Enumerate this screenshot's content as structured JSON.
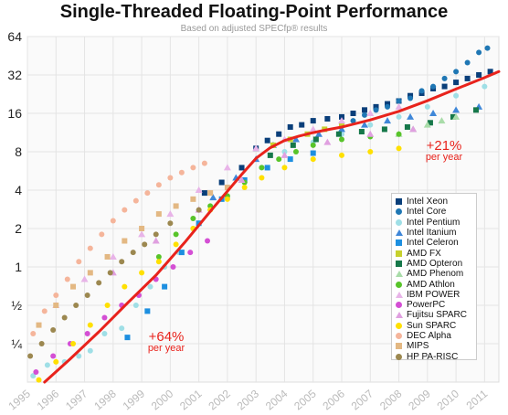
{
  "chart_data": {
    "type": "scatter",
    "title": "Single-Threaded Floating-Point Performance",
    "subtitle": "Based on adjusted SPECfp® results",
    "xlabel": "",
    "ylabel": "",
    "y_scale": "log2",
    "ylim": [
      0.125,
      64
    ],
    "xlim": [
      1995,
      2011.5
    ],
    "y_ticks": [
      {
        "value": 0.25,
        "label": "¼"
      },
      {
        "value": 0.5,
        "label": "½"
      },
      {
        "value": 1,
        "label": "1"
      },
      {
        "value": 2,
        "label": "2"
      },
      {
        "value": 4,
        "label": "4"
      },
      {
        "value": 8,
        "label": "8"
      },
      {
        "value": 16,
        "label": "16"
      },
      {
        "value": 32,
        "label": "32"
      },
      {
        "value": 64,
        "label": "64"
      }
    ],
    "x_ticks": [
      "1995",
      "1996",
      "1997",
      "1998",
      "1999",
      "2000",
      "2001",
      "2002",
      "2003",
      "2004",
      "2005",
      "2006",
      "2007",
      "2008",
      "2009",
      "2010",
      "2011"
    ],
    "grid": true,
    "legend_placement": "bottom-right",
    "series": [
      {
        "name": "Intel Xeon",
        "color": "#0a3f7a",
        "marker": "square",
        "x": [
          2001.2,
          2001.8,
          2002.5,
          2003.0,
          2003.4,
          2003.8,
          2004.2,
          2004.6,
          2005.0,
          2005.5,
          2006.0,
          2006.4,
          2006.8,
          2007.2,
          2007.6,
          2008.0,
          2008.4,
          2008.8,
          2009.2,
          2009.6,
          2010.0,
          2010.4,
          2010.8,
          2011.2
        ],
        "y": [
          3.8,
          4.6,
          6.0,
          8.5,
          9.8,
          11,
          12.5,
          13,
          14,
          14.5,
          15,
          16,
          17,
          18,
          19,
          20,
          22,
          23,
          25,
          26,
          28,
          30,
          32,
          34
        ]
      },
      {
        "name": "Intel Core",
        "color": "#1f77b4",
        "marker": "circle",
        "x": [
          2006.4,
          2006.8,
          2007.2,
          2007.6,
          2008.0,
          2008.4,
          2008.8,
          2009.2,
          2009.6,
          2010.0,
          2010.4,
          2010.8,
          2011.1
        ],
        "y": [
          14,
          15.5,
          17,
          18,
          20,
          21,
          24,
          26,
          30,
          34,
          40,
          48,
          52
        ]
      },
      {
        "name": "Intel Pentium",
        "color": "#9fdfe6",
        "marker": "circle",
        "x": [
          1995.2,
          1995.7,
          1996.3,
          1996.8,
          1997.2,
          1997.7,
          1998.3,
          1998.8,
          1999.3,
          1999.8,
          2000.3,
          2000.8,
          2001.4,
          2002.0,
          2002.6,
          2003.2,
          2004.0,
          2005.0,
          2006.0,
          2007.0,
          2008.0,
          2009.0,
          2010.0,
          2011.0
        ],
        "y": [
          0.14,
          0.17,
          0.18,
          0.2,
          0.22,
          0.3,
          0.33,
          0.5,
          0.7,
          1.0,
          1.3,
          2.0,
          2.8,
          3.5,
          4.6,
          6.0,
          8.0,
          9.5,
          11,
          13,
          15,
          18,
          22,
          26
        ]
      },
      {
        "name": "Intel Itanium",
        "color": "#3f87d8",
        "marker": "triangle",
        "x": [
          2001.5,
          2002.3,
          2003.0,
          2003.6,
          2004.4,
          2005.2,
          2006.0,
          2006.8,
          2007.6,
          2008.4,
          2009.2,
          2010.0,
          2010.8
        ],
        "y": [
          3.5,
          5.0,
          7.0,
          9.0,
          10,
          11,
          12,
          13,
          14,
          15,
          16,
          17,
          18
        ]
      },
      {
        "name": "Intel Celeron",
        "color": "#1d8fe0",
        "marker": "square",
        "x": [
          1998.5,
          1999.2,
          1999.8,
          2000.4,
          2001.0,
          2001.8,
          2002.6,
          2003.4,
          2004.2,
          2005.0
        ],
        "y": [
          0.28,
          0.45,
          0.7,
          1.3,
          2.2,
          3.4,
          4.8,
          6.0,
          7.0,
          7.8
        ]
      },
      {
        "name": "AMD FX",
        "color": "#c7d12e",
        "marker": "square",
        "x": [
          2003.6,
          2004.2,
          2004.8,
          2005.4,
          2006.0
        ],
        "y": [
          9,
          10,
          11,
          12,
          13
        ]
      },
      {
        "name": "AMD Opteron",
        "color": "#16784a",
        "marker": "square",
        "x": [
          2003.5,
          2004.3,
          2005.1,
          2005.9,
          2006.7,
          2007.5,
          2008.3,
          2009.1,
          2009.9,
          2010.7
        ],
        "y": [
          7.5,
          9,
          10,
          11,
          11.5,
          12,
          12.5,
          13.5,
          15,
          17
        ]
      },
      {
        "name": "AMD Phenom",
        "color": "#a9dca9",
        "marker": "triangle",
        "x": [
          2008.0,
          2008.5,
          2009.0,
          2009.5,
          2010.0
        ],
        "y": [
          11,
          12,
          13,
          14,
          15
        ]
      },
      {
        "name": "AMD Athlon",
        "color": "#58c42a",
        "marker": "circle",
        "x": [
          1999.6,
          2000.2,
          2000.8,
          2001.4,
          2002.0,
          2002.6,
          2003.2,
          2003.8,
          2004.4,
          2005.0,
          2006.0,
          2007.0,
          2008.0
        ],
        "y": [
          1.2,
          1.8,
          2.4,
          3.0,
          3.6,
          4.6,
          6.0,
          7.0,
          8.0,
          9.0,
          10,
          10.5,
          11
        ]
      },
      {
        "name": "IBM POWER",
        "color": "#e8b4e8",
        "marker": "triangle",
        "x": [
          1996.0,
          1997.0,
          1998.0,
          1999.0,
          2000.0,
          2001.0,
          2002.0,
          2003.0,
          2004.0,
          2005.0,
          2006.0,
          2007.0,
          2008.0
        ],
        "y": [
          0.5,
          0.8,
          1.2,
          1.8,
          2.6,
          4.0,
          6.0,
          8.5,
          10,
          12,
          14,
          16,
          18
        ]
      },
      {
        "name": "PowerPC",
        "color": "#d44fd4",
        "marker": "circle",
        "x": [
          1995.3,
          1995.9,
          1996.5,
          1997.1,
          1997.7,
          1998.3,
          1998.9,
          1999.5,
          2000.1,
          2000.7,
          2001.3
        ],
        "y": [
          0.15,
          0.2,
          0.25,
          0.3,
          0.4,
          0.5,
          0.6,
          0.8,
          1.0,
          1.3,
          1.6
        ]
      },
      {
        "name": "Fujitsu SPARC",
        "color": "#e0a0e0",
        "marker": "triangle",
        "x": [
          1998.0,
          1999.5,
          2001.0,
          2002.5,
          2004.0,
          2005.5,
          2007.0,
          2008.5
        ],
        "y": [
          0.9,
          1.6,
          2.8,
          4.8,
          7.5,
          9.5,
          11,
          12
        ]
      },
      {
        "name": "Sun SPARC",
        "color": "#ffe000",
        "marker": "circle",
        "x": [
          1995.4,
          1996.0,
          1996.6,
          1997.2,
          1997.8,
          1998.4,
          1999.0,
          1999.6,
          2000.2,
          2000.8,
          2001.4,
          2002.0,
          2002.6,
          2003.2,
          2004.0,
          2005.0,
          2006.0,
          2007.0,
          2008.0
        ],
        "y": [
          0.13,
          0.18,
          0.25,
          0.35,
          0.5,
          0.7,
          0.9,
          1.1,
          1.5,
          2.0,
          2.8,
          3.4,
          4.2,
          5.0,
          6.0,
          7.0,
          7.5,
          8.0,
          8.5
        ]
      },
      {
        "name": "DEC Alpha",
        "color": "#f5b59b",
        "marker": "circle",
        "x": [
          1995.2,
          1995.6,
          1996.0,
          1996.4,
          1996.8,
          1997.2,
          1997.6,
          1998.0,
          1998.4,
          1998.8,
          1999.2,
          1999.6,
          2000.0,
          2000.4,
          2000.8,
          2001.2
        ],
        "y": [
          0.3,
          0.45,
          0.6,
          0.8,
          1.1,
          1.4,
          1.8,
          2.3,
          2.8,
          3.3,
          3.8,
          4.4,
          5.0,
          5.5,
          6.0,
          6.5
        ]
      },
      {
        "name": "MIPS",
        "color": "#e3b883",
        "marker": "square",
        "x": [
          1995.4,
          1996.0,
          1996.6,
          1997.2,
          1997.8,
          1998.4,
          1999.0,
          1999.6,
          2000.2,
          2000.8,
          2001.4,
          2002.0
        ],
        "y": [
          0.35,
          0.5,
          0.7,
          0.9,
          1.2,
          1.6,
          2.0,
          2.6,
          3.0,
          3.4,
          3.8,
          4.2
        ]
      },
      {
        "name": "HP PA-RISC",
        "color": "#9c8850",
        "marker": "circle",
        "x": [
          1995.1,
          1995.5,
          1995.9,
          1996.3,
          1996.7,
          1997.1,
          1997.5,
          1997.9,
          1998.3,
          1998.7,
          1999.1,
          1999.5,
          2000.0,
          2001.0
        ],
        "y": [
          0.2,
          0.25,
          0.32,
          0.4,
          0.5,
          0.6,
          0.75,
          0.9,
          1.1,
          1.3,
          1.5,
          1.8,
          2.2,
          2.8
        ]
      }
    ],
    "trend_line": {
      "color": "#e8231c",
      "x": [
        1995.6,
        1996.5,
        1997.5,
        1998.5,
        1999.5,
        2000.5,
        2001.5,
        2002.5,
        2003.0,
        2003.5,
        2004.0,
        2004.5,
        2005.0,
        2005.5,
        2006.0,
        2007.0,
        2008.0,
        2009.0,
        2010.0,
        2011.0,
        2011.5
      ],
      "y": [
        0.125,
        0.19,
        0.31,
        0.52,
        0.86,
        1.55,
        2.9,
        5.3,
        7.1,
        8.6,
        9.8,
        10.6,
        11.3,
        11.9,
        12.5,
        14.2,
        16.6,
        20.1,
        24.8,
        30.5,
        34.0
      ]
    },
    "annotations": [
      {
        "text": "+64%",
        "subtext": "per year",
        "x": 1999.8,
        "y": 0.32
      },
      {
        "text": "+21%",
        "subtext": "per year",
        "x": 2008.9,
        "y": 10.5
      }
    ]
  },
  "title_text": "Single-Threaded Floating-Point Performance",
  "subtitle_text": "Based on adjusted SPECfp® results",
  "legend": {
    "items": [
      {
        "label": "Intel Xeon",
        "color": "#0a3f7a",
        "shape": "square"
      },
      {
        "label": "Intel Core",
        "color": "#1f77b4",
        "shape": "circle"
      },
      {
        "label": "Intel Pentium",
        "color": "#9fdfe6",
        "shape": "circle"
      },
      {
        "label": "Intel Itanium",
        "color": "#3f87d8",
        "shape": "triangle"
      },
      {
        "label": "Intel Celeron",
        "color": "#1d8fe0",
        "shape": "square"
      },
      {
        "label": "AMD FX",
        "color": "#c7d12e",
        "shape": "square"
      },
      {
        "label": "AMD Opteron",
        "color": "#16784a",
        "shape": "square"
      },
      {
        "label": "AMD Phenom",
        "color": "#a9dca9",
        "shape": "triangle"
      },
      {
        "label": "AMD Athlon",
        "color": "#58c42a",
        "shape": "circle"
      },
      {
        "label": "IBM POWER",
        "color": "#e8b4e8",
        "shape": "triangle"
      },
      {
        "label": "PowerPC",
        "color": "#d44fd4",
        "shape": "circle"
      },
      {
        "label": "Fujitsu SPARC",
        "color": "#e0a0e0",
        "shape": "triangle"
      },
      {
        "label": "Sun SPARC",
        "color": "#ffe000",
        "shape": "circle"
      },
      {
        "label": "DEC Alpha",
        "color": "#f5b59b",
        "shape": "circle"
      },
      {
        "label": "MIPS",
        "color": "#e3b883",
        "shape": "square"
      },
      {
        "label": "HP PA-RISC",
        "color": "#9c8850",
        "shape": "circle"
      }
    ]
  },
  "annotation_left": {
    "big": "+64%",
    "small": "per year"
  },
  "annotation_right": {
    "big": "+21%",
    "small": "per year"
  }
}
